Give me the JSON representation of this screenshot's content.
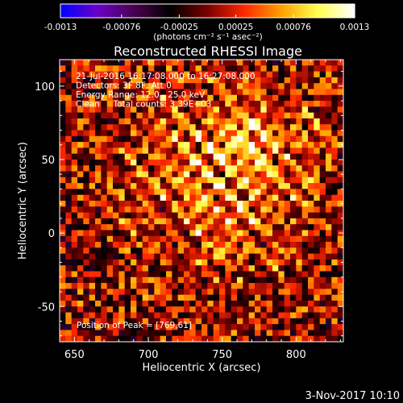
{
  "chart_data": {
    "type": "heatmap",
    "title": "Reconstructed RHESSI Image",
    "xlabel": "Heliocentric X (arcsec)",
    "ylabel": "Heliocentric Y (arcsec)",
    "xlim": [
      640,
      832
    ],
    "ylim": [
      -74,
      118
    ],
    "x_ticks": [
      650,
      700,
      750,
      800
    ],
    "y_ticks": [
      -50,
      0,
      50,
      100
    ],
    "colorbar": {
      "min": -0.0013,
      "max": 0.0013,
      "ticks": [
        "-0.0013",
        "-0.00076",
        "-0.00025",
        "0.00025",
        "0.00076",
        "0.0013"
      ],
      "tick_values": [
        -0.0013,
        -0.00076,
        -0.00025,
        0.00025,
        0.00076,
        0.0013
      ],
      "unit_label": "(photons cm⁻² s⁻¹ asec⁻²)",
      "colormap_stops": [
        "#0000ff",
        "#6a00c8",
        "#4a0050",
        "#000000",
        "#7a0000",
        "#ff2800",
        "#ffa000",
        "#ffff50",
        "#ffffff"
      ]
    },
    "grid_size": 48,
    "source_center": [
      752,
      40
    ],
    "peak_flux": 0.0013,
    "info_lines": [
      "21-Jul-2016 16:17:08.000 to 16:27:08.000",
      "Detectors: 3F 8F, Att 0",
      "Energy Range: 12.0 - 25.0 keV",
      "Clean     Total counts: 3.39E+03"
    ],
    "peak_text": "Position of Peak = [769,61]",
    "peak_position": [
      769,
      61
    ]
  },
  "footer": {
    "date": "3-Nov-2017 10:10"
  }
}
